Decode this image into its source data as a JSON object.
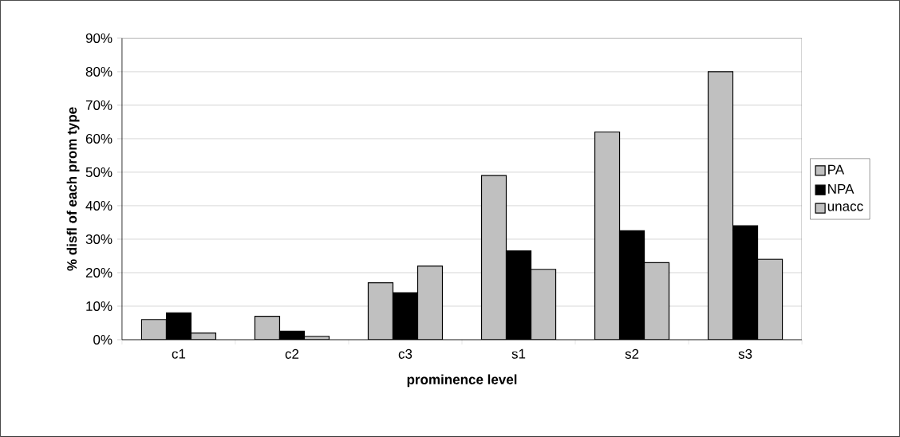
{
  "chart_data": {
    "type": "bar",
    "xlabel": "prominence level",
    "ylabel": "% disfl of each prom type",
    "categories": [
      "c1",
      "c2",
      "c3",
      "s1",
      "s2",
      "s3"
    ],
    "series": [
      {
        "name": "PA",
        "color": "#c0c0c0",
        "values": [
          6,
          7,
          17,
          49,
          62,
          80
        ]
      },
      {
        "name": "NPA",
        "color": "#000000",
        "values": [
          8,
          2.5,
          14,
          26.5,
          32.5,
          34
        ]
      },
      {
        "name": "unacc",
        "color": "#c0c0c0",
        "values": [
          2,
          1,
          22,
          21,
          23,
          24
        ]
      }
    ],
    "ylim": [
      0,
      90
    ],
    "yticks": [
      {
        "value": 0,
        "label": "0%"
      },
      {
        "value": 10,
        "label": "10%"
      },
      {
        "value": 20,
        "label": "20%"
      },
      {
        "value": 30,
        "label": "30%"
      },
      {
        "value": 40,
        "label": "40%"
      },
      {
        "value": 50,
        "label": "50%"
      },
      {
        "value": 60,
        "label": "60%"
      },
      {
        "value": 70,
        "label": "70%"
      },
      {
        "value": 80,
        "label": "80%"
      },
      {
        "value": 90,
        "label": "90%"
      }
    ],
    "grid": "y",
    "legend": "right"
  }
}
